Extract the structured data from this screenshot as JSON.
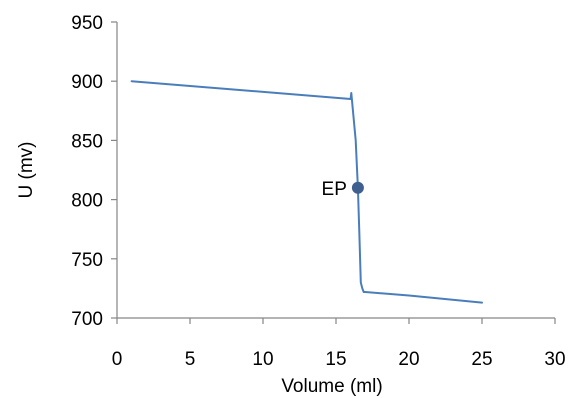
{
  "chart_data": {
    "type": "line",
    "title": "",
    "xlabel": "Volume (ml)",
    "ylabel": "U (mv)",
    "xlim": [
      0,
      30
    ],
    "ylim": [
      700,
      950
    ],
    "xticks": [
      0,
      5,
      10,
      15,
      20,
      25,
      30
    ],
    "yticks": [
      700,
      750,
      800,
      850,
      900,
      950
    ],
    "grid": false,
    "legend": "none",
    "series": [
      {
        "color": "#4a7ebb",
        "x": [
          1,
          16,
          16.05,
          16.2,
          16.35,
          16.5,
          16.6,
          16.7,
          16.8,
          16.9,
          17,
          20,
          25
        ],
        "y": [
          900,
          885,
          890,
          870,
          850,
          810,
          770,
          730,
          725,
          722,
          722,
          719,
          713
        ]
      }
    ],
    "annotations": [
      {
        "label": "EP",
        "x": 16.5,
        "y": 810,
        "color": "#3f5f8f"
      }
    ]
  }
}
